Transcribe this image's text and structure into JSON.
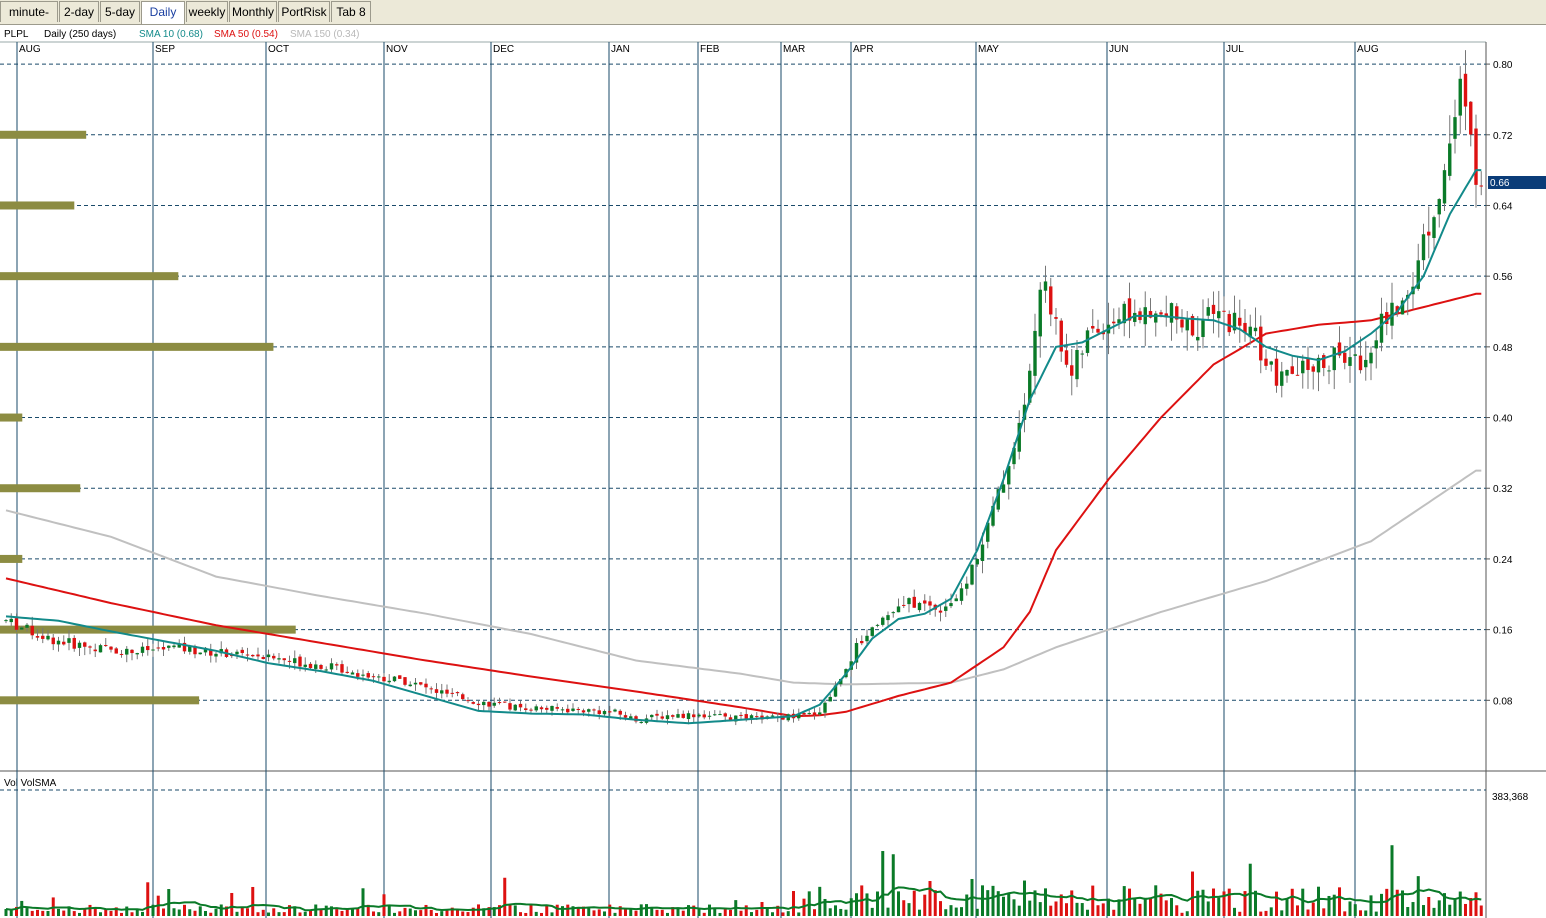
{
  "tabs": [
    "minute-bar",
    "2-day",
    "5-day",
    "Daily",
    "weekly",
    "Monthly",
    "PortRisk",
    "Tab 8"
  ],
  "active_tab": "Daily",
  "header": {
    "symbol": "PLPL",
    "period": "Daily (250 days)",
    "sma10": "SMA 10 (0.68)",
    "sma50": "SMA 50 (0.54)",
    "sma150": "SMA 150 (0.34)"
  },
  "volume_header": "Vol  VolSMA",
  "colors": {
    "up": "#0a7a28",
    "down": "#dd1111",
    "sma10": "#128a8a",
    "sma50": "#dd1111",
    "sma150": "#c0c0c0",
    "volume_profile": "#8c8c42",
    "grid": "#1a4a6a",
    "price_tag": "#0a3c78"
  },
  "chart_data": {
    "type": "line",
    "series_kind": "candlestick",
    "title": "PLPL",
    "subtitle": "Daily (250 days)",
    "months": [
      "AUG",
      "SEP",
      "OCT",
      "NOV",
      "DEC",
      "JAN",
      "FEB",
      "MAR",
      "APR",
      "MAY",
      "JUN",
      "JUL",
      "AUG"
    ],
    "price_axis": {
      "ticks": [
        "0.80",
        "0.72",
        "0.64",
        "0.56",
        "0.48",
        "0.40",
        "0.32",
        "0.24",
        "0.16",
        "0.08"
      ],
      "tick_values": [
        0.8,
        0.72,
        0.64,
        0.56,
        0.48,
        0.4,
        0.32,
        0.24,
        0.16,
        0.08
      ],
      "range": [
        0.0,
        0.825
      ]
    },
    "last_price": "0.66",
    "volume_axis": {
      "label": "383,368",
      "max": 383368
    },
    "series": [
      {
        "name": "SMA 10 (0.68)",
        "key": "sma10",
        "points": [
          [
            0,
            0.175
          ],
          [
            10,
            0.17
          ],
          [
            20,
            0.158
          ],
          [
            30,
            0.147
          ],
          [
            40,
            0.136
          ],
          [
            50,
            0.122
          ],
          [
            60,
            0.113
          ],
          [
            70,
            0.102
          ],
          [
            80,
            0.085
          ],
          [
            90,
            0.068
          ],
          [
            100,
            0.065
          ],
          [
            110,
            0.064
          ],
          [
            120,
            0.058
          ],
          [
            130,
            0.054
          ],
          [
            140,
            0.058
          ],
          [
            150,
            0.062
          ],
          [
            155,
            0.075
          ],
          [
            160,
            0.11
          ],
          [
            165,
            0.15
          ],
          [
            170,
            0.172
          ],
          [
            175,
            0.178
          ],
          [
            180,
            0.195
          ],
          [
            185,
            0.25
          ],
          [
            190,
            0.33
          ],
          [
            195,
            0.42
          ],
          [
            200,
            0.48
          ],
          [
            205,
            0.485
          ],
          [
            210,
            0.5
          ],
          [
            215,
            0.515
          ],
          [
            220,
            0.515
          ],
          [
            225,
            0.512
          ],
          [
            230,
            0.51
          ],
          [
            235,
            0.5
          ],
          [
            240,
            0.48
          ],
          [
            245,
            0.47
          ],
          [
            250,
            0.465
          ],
          [
            255,
            0.475
          ],
          [
            260,
            0.495
          ],
          [
            265,
            0.52
          ],
          [
            270,
            0.56
          ],
          [
            275,
            0.63
          ],
          [
            280,
            0.68
          ]
        ]
      },
      {
        "name": "SMA 50 (0.54)",
        "key": "sma50",
        "points": [
          [
            0,
            0.218
          ],
          [
            20,
            0.19
          ],
          [
            40,
            0.165
          ],
          [
            60,
            0.145
          ],
          [
            80,
            0.125
          ],
          [
            100,
            0.107
          ],
          [
            120,
            0.09
          ],
          [
            140,
            0.072
          ],
          [
            150,
            0.062
          ],
          [
            155,
            0.063
          ],
          [
            160,
            0.067
          ],
          [
            170,
            0.085
          ],
          [
            180,
            0.1
          ],
          [
            190,
            0.14
          ],
          [
            195,
            0.18
          ],
          [
            200,
            0.25
          ],
          [
            210,
            0.33
          ],
          [
            220,
            0.4
          ],
          [
            230,
            0.46
          ],
          [
            240,
            0.495
          ],
          [
            250,
            0.505
          ],
          [
            260,
            0.51
          ],
          [
            270,
            0.525
          ],
          [
            280,
            0.54
          ]
        ]
      },
      {
        "name": "SMA 150 (0.34)",
        "key": "sma150",
        "points": [
          [
            0,
            0.295
          ],
          [
            20,
            0.265
          ],
          [
            40,
            0.22
          ],
          [
            60,
            0.198
          ],
          [
            80,
            0.178
          ],
          [
            100,
            0.155
          ],
          [
            120,
            0.125
          ],
          [
            140,
            0.11
          ],
          [
            150,
            0.1
          ],
          [
            160,
            0.098
          ],
          [
            180,
            0.1
          ],
          [
            190,
            0.115
          ],
          [
            200,
            0.14
          ],
          [
            220,
            0.18
          ],
          [
            240,
            0.215
          ],
          [
            260,
            0.26
          ],
          [
            280,
            0.34
          ]
        ]
      }
    ],
    "volume_profile": [
      {
        "price": 0.72,
        "length": 0.058
      },
      {
        "price": 0.64,
        "length": 0.05
      },
      {
        "price": 0.56,
        "length": 0.12
      },
      {
        "price": 0.48,
        "length": 0.184
      },
      {
        "price": 0.4,
        "length": 0.015
      },
      {
        "price": 0.32,
        "length": 0.054
      },
      {
        "price": 0.24,
        "length": 0.015
      },
      {
        "price": 0.16,
        "length": 0.199
      },
      {
        "price": 0.08,
        "length": 0.134
      }
    ],
    "anchors": [
      [
        0,
        0.17
      ],
      [
        8,
        0.15
      ],
      [
        16,
        0.14
      ],
      [
        24,
        0.135
      ],
      [
        32,
        0.14
      ],
      [
        38,
        0.135
      ],
      [
        46,
        0.132
      ],
      [
        54,
        0.125
      ],
      [
        62,
        0.118
      ],
      [
        70,
        0.107
      ],
      [
        76,
        0.102
      ],
      [
        82,
        0.09
      ],
      [
        90,
        0.078
      ],
      [
        96,
        0.073
      ],
      [
        104,
        0.07
      ],
      [
        110,
        0.069
      ],
      [
        116,
        0.066
      ],
      [
        120,
        0.058
      ],
      [
        126,
        0.063
      ],
      [
        132,
        0.064
      ],
      [
        138,
        0.06
      ],
      [
        146,
        0.06
      ],
      [
        152,
        0.062
      ],
      [
        155,
        0.068
      ],
      [
        158,
        0.095
      ],
      [
        162,
        0.14
      ],
      [
        166,
        0.17
      ],
      [
        172,
        0.19
      ],
      [
        178,
        0.185
      ],
      [
        182,
        0.2
      ],
      [
        186,
        0.26
      ],
      [
        190,
        0.33
      ],
      [
        194,
        0.41
      ],
      [
        196,
        0.5
      ],
      [
        198,
        0.56
      ],
      [
        200,
        0.5
      ],
      [
        203,
        0.45
      ],
      [
        206,
        0.49
      ],
      [
        210,
        0.51
      ],
      [
        214,
        0.52
      ],
      [
        218,
        0.51
      ],
      [
        222,
        0.515
      ],
      [
        226,
        0.5
      ],
      [
        230,
        0.515
      ],
      [
        234,
        0.51
      ],
      [
        238,
        0.49
      ],
      [
        242,
        0.44
      ],
      [
        246,
        0.45
      ],
      [
        250,
        0.46
      ],
      [
        254,
        0.47
      ],
      [
        258,
        0.46
      ],
      [
        262,
        0.51
      ],
      [
        265,
        0.52
      ],
      [
        268,
        0.56
      ],
      [
        271,
        0.62
      ],
      [
        274,
        0.68
      ],
      [
        277,
        0.77
      ],
      [
        280,
        0.68
      ]
    ]
  }
}
